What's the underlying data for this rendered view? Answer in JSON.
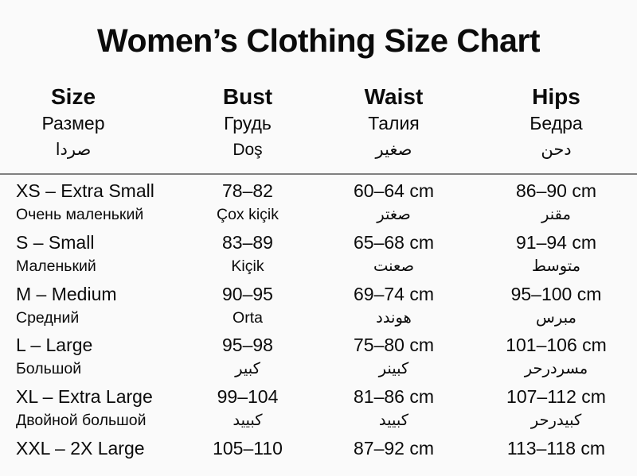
{
  "title": "Women’s Clothing Size Chart",
  "columns": [
    {
      "en": "Size",
      "ru": "Размер",
      "ar": "صردا"
    },
    {
      "en": "Bust",
      "ru": "Грудь",
      "ar": "Doş"
    },
    {
      "en": "Waist",
      "ru": "Талия",
      "ar": "صغير"
    },
    {
      "en": "Hips",
      "ru": "Бедра",
      "ar": "دحن"
    }
  ],
  "rows": [
    {
      "size": "XS – Extra Small",
      "size_sub": "Очень маленький",
      "bust": "78–82",
      "bust_sub": "Çox kiçik",
      "waist": "60–64 cm",
      "waist_sub": "صغتر",
      "hips": "86–90 cm",
      "hips_sub": "مقنر"
    },
    {
      "size": "S – Small",
      "size_sub": "Маленький",
      "bust": "83–89",
      "bust_sub": "Kiçik",
      "waist": "65–68 cm",
      "waist_sub": "صعنت",
      "hips": "91–94 cm",
      "hips_sub": "متوسط"
    },
    {
      "size": "M – Medium",
      "size_sub": "Средний",
      "bust": "90–95",
      "bust_sub": "Orta",
      "waist": "69–74 cm",
      "waist_sub": "هوندد",
      "hips": "95–100 cm",
      "hips_sub": "مبرس"
    },
    {
      "size": "L – Large",
      "size_sub": "Большой",
      "bust": "95–98",
      "bust_sub": "كبير",
      "waist": "75–80 cm",
      "waist_sub": "كبينر",
      "hips": "101–106 cm",
      "hips_sub": "مسردرحر"
    },
    {
      "size": "XL – Extra Large",
      "size_sub": "Двойной большой",
      "bust": "99–104",
      "bust_sub": "كبييد",
      "waist": "81–86 cm",
      "waist_sub": "كبييد",
      "hips": "107–112 cm",
      "hips_sub": "كبيدرحر"
    },
    {
      "size": "XXL – 2X Large",
      "size_sub": "",
      "bust": "105–110",
      "bust_sub": "",
      "waist": "87–92 cm",
      "waist_sub": "",
      "hips": "113–118 cm",
      "hips_sub": ""
    }
  ]
}
